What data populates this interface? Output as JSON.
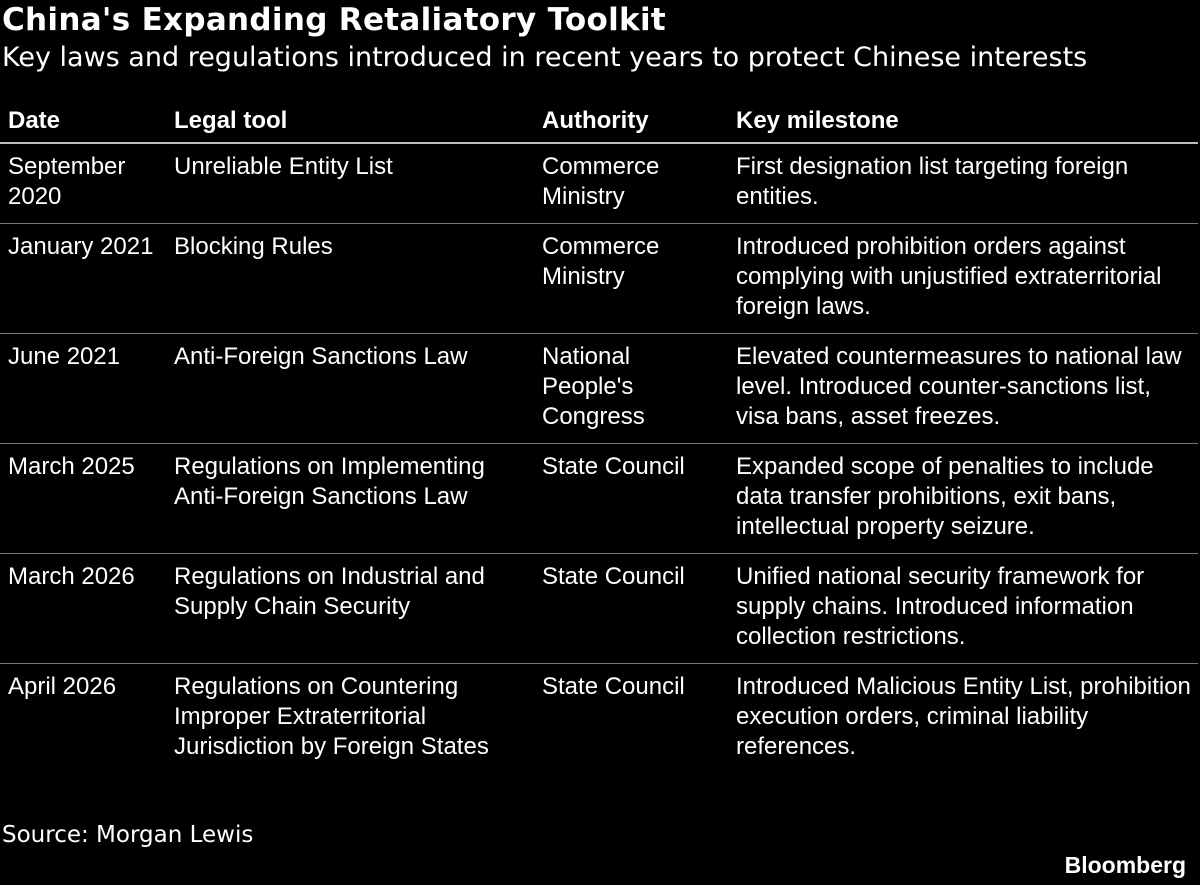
{
  "header": {
    "title": "China's Expanding Retaliatory Toolkit",
    "subtitle": "Key laws and regulations introduced in recent years to protect Chinese interests"
  },
  "table": {
    "columns": [
      "Date",
      "Legal tool",
      "Authority",
      "Key milestone"
    ],
    "rows": [
      [
        "September 2020",
        "Unreliable Entity List",
        "Commerce Ministry",
        "First designation list targeting foreign entities."
      ],
      [
        "January 2021",
        "Blocking Rules",
        "Commerce Ministry",
        "Introduced prohibition orders against complying with unjustified extraterritorial foreign laws."
      ],
      [
        "June 2021",
        "Anti-Foreign Sanctions Law",
        "National People's Congress",
        "Elevated countermeasures to national law level. Introduced counter-sanctions list, visa bans, asset freezes."
      ],
      [
        "March 2025",
        "Regulations on Implementing Anti-Foreign Sanctions Law",
        "State Council",
        "Expanded scope of penalties to include data transfer prohibitions, exit bans, intellectual property seizure."
      ],
      [
        "March 2026",
        "Regulations on Industrial and Supply Chain Security",
        "State Council",
        "Unified national security framework for supply chains. Introduced information collection restrictions."
      ],
      [
        "April 2026",
        "Regulations on Countering Improper Extraterritorial Jurisdiction by Foreign States",
        "State Council",
        "Introduced Malicious Entity List, prohibition execution orders, criminal liability references."
      ]
    ]
  },
  "footer": {
    "source": "Source: Morgan Lewis",
    "brand": "Bloomberg"
  }
}
